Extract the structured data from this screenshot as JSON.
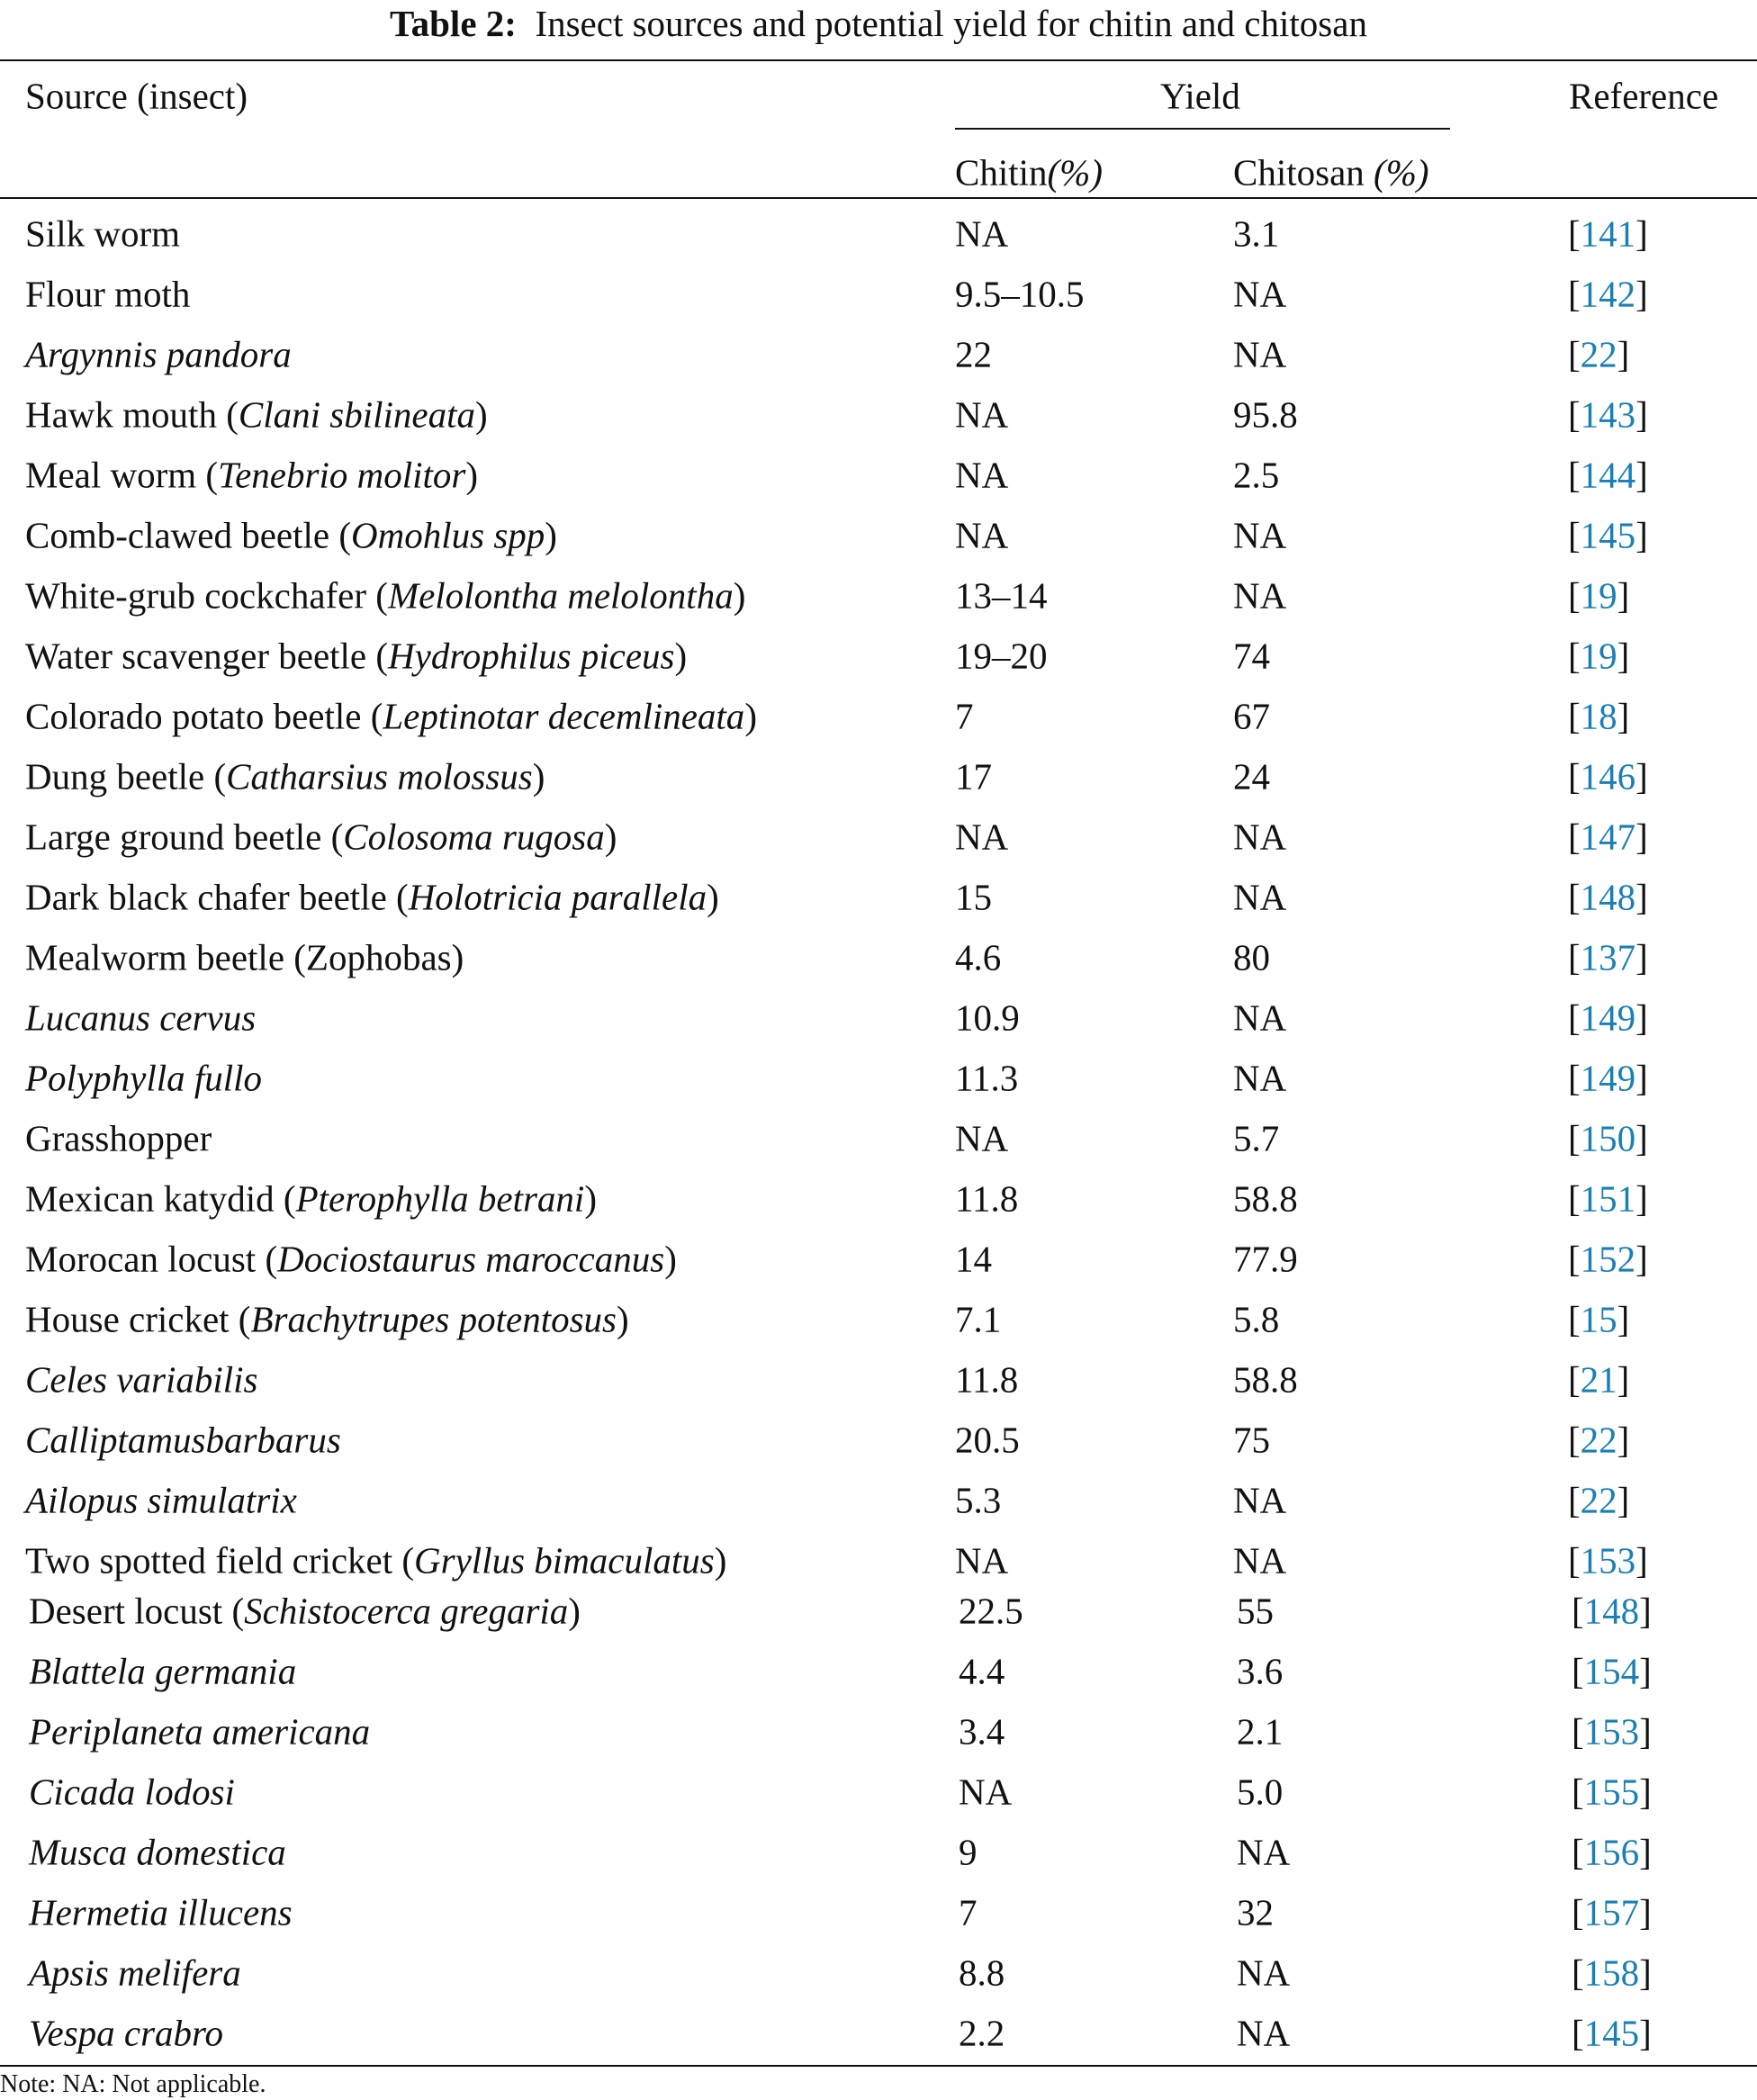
{
  "title": {
    "label": "Table 2:",
    "text": "Insect sources and potential yield for chitin and chitosan"
  },
  "table": {
    "header": {
      "source": "Source (insect)",
      "yield": "Yield",
      "reference": "Reference",
      "chitin": [
        {
          "text": "Chitin",
          "italic": false
        },
        {
          "text": "(%)",
          "italic": true
        }
      ],
      "chitosan": [
        {
          "text": "Chitosan ",
          "italic": false
        },
        {
          "text": "(%)",
          "italic": true
        }
      ]
    },
    "rows": [
      {
        "source": [
          {
            "text": "Silk worm",
            "italic": false
          }
        ],
        "chitin": "NA",
        "chitosan": "3.1",
        "reference": [
          "[",
          "141",
          "]"
        ]
      },
      {
        "source": [
          {
            "text": "Flour moth",
            "italic": false
          }
        ],
        "chitin": "9.5–10.5",
        "chitosan": "NA",
        "reference": [
          "[",
          "142",
          "]"
        ]
      },
      {
        "source": [
          {
            "text": "Argynnis pandora",
            "italic": true
          }
        ],
        "chitin": "22",
        "chitosan": "NA",
        "reference": [
          "[",
          "22",
          "]"
        ]
      },
      {
        "source": [
          {
            "text": "Hawk mouth (",
            "italic": false
          },
          {
            "text": "Clani sbilineata",
            "italic": true
          },
          {
            "text": ")",
            "italic": false
          }
        ],
        "chitin": "NA",
        "chitosan": "95.8",
        "reference": [
          "[",
          "143",
          "]"
        ]
      },
      {
        "source": [
          {
            "text": "Meal worm (",
            "italic": false
          },
          {
            "text": "Tenebrio molitor",
            "italic": true
          },
          {
            "text": ")",
            "italic": false
          }
        ],
        "chitin": "NA",
        "chitosan": "2.5",
        "reference": [
          "[",
          "144",
          "]"
        ]
      },
      {
        "source": [
          {
            "text": "Comb-clawed beetle (",
            "italic": false
          },
          {
            "text": "Omohlus spp",
            "italic": true
          },
          {
            "text": ")",
            "italic": false
          }
        ],
        "chitin": "NA",
        "chitosan": "NA",
        "reference": [
          "[",
          "145",
          "]"
        ]
      },
      {
        "source": [
          {
            "text": "White-grub cockchafer (",
            "italic": false
          },
          {
            "text": "Melolontha melolontha",
            "italic": true
          },
          {
            "text": ")",
            "italic": false
          }
        ],
        "chitin": "13–14",
        "chitosan": "NA",
        "reference": [
          "[",
          "19",
          "]"
        ]
      },
      {
        "source": [
          {
            "text": "Water scavenger beetle (",
            "italic": false
          },
          {
            "text": "Hydrophilus piceus",
            "italic": true
          },
          {
            "text": ")",
            "italic": false
          }
        ],
        "chitin": "19–20",
        "chitosan": "74",
        "reference": [
          "[",
          "19",
          "]"
        ]
      },
      {
        "source": [
          {
            "text": "Colorado potato beetle (",
            "italic": false
          },
          {
            "text": "Leptinotar decemlineata",
            "italic": true
          },
          {
            "text": ")",
            "italic": false
          }
        ],
        "chitin": "7",
        "chitosan": "67",
        "reference": [
          "[",
          "18",
          "]"
        ]
      },
      {
        "source": [
          {
            "text": "Dung beetle (",
            "italic": false
          },
          {
            "text": "Catharsius molossus",
            "italic": true
          },
          {
            "text": ")",
            "italic": false
          }
        ],
        "chitin": "17",
        "chitosan": "24",
        "reference": [
          "[",
          "146",
          "]"
        ]
      },
      {
        "source": [
          {
            "text": "Large ground beetle (",
            "italic": false
          },
          {
            "text": "Colosoma rugosa",
            "italic": true
          },
          {
            "text": ")",
            "italic": false
          }
        ],
        "chitin": "NA",
        "chitosan": "NA",
        "reference": [
          "[",
          "147",
          "]"
        ]
      },
      {
        "source": [
          {
            "text": "Dark black chafer beetle (",
            "italic": false
          },
          {
            "text": "Holotricia parallela",
            "italic": true
          },
          {
            "text": ")",
            "italic": false
          }
        ],
        "chitin": "15",
        "chitosan": "NA",
        "reference": [
          "[",
          "148",
          "]"
        ]
      },
      {
        "source": [
          {
            "text": "Mealworm beetle (Zophobas)",
            "italic": false
          }
        ],
        "chitin": "4.6",
        "chitosan": "80",
        "reference": [
          "[",
          "137",
          "]"
        ]
      },
      {
        "source": [
          {
            "text": "Lucanus cervus",
            "italic": true
          }
        ],
        "chitin": "10.9",
        "chitosan": "NA",
        "reference": [
          "[",
          "149",
          "]"
        ]
      },
      {
        "source": [
          {
            "text": "Polyphylla fullo",
            "italic": true
          }
        ],
        "chitin": "11.3",
        "chitosan": "NA",
        "reference": [
          "[",
          "149",
          "]"
        ]
      },
      {
        "source": [
          {
            "text": "Grasshopper",
            "italic": false
          }
        ],
        "chitin": "NA",
        "chitosan": "5.7",
        "reference": [
          "[",
          "150",
          "]"
        ]
      },
      {
        "source": [
          {
            "text": "Mexican katydid (",
            "italic": false
          },
          {
            "text": "Pterophylla betrani",
            "italic": true
          },
          {
            "text": ")",
            "italic": false
          }
        ],
        "chitin": "11.8",
        "chitosan": "58.8",
        "reference": [
          "[",
          "151",
          "]"
        ]
      },
      {
        "source": [
          {
            "text": "Morocan locust (",
            "italic": false
          },
          {
            "text": "Dociostaurus maroccanus",
            "italic": true
          },
          {
            "text": ")",
            "italic": false
          }
        ],
        "chitin": "14",
        "chitosan": "77.9",
        "reference": [
          "[",
          "152",
          "]"
        ]
      },
      {
        "source": [
          {
            "text": "House cricket (",
            "italic": false
          },
          {
            "text": "Brachytrupes potentosus",
            "italic": true
          },
          {
            "text": ")",
            "italic": false
          }
        ],
        "chitin": "7.1",
        "chitosan": "5.8",
        "reference": [
          "[",
          "15",
          "]"
        ]
      },
      {
        "source": [
          {
            "text": "Celes variabilis",
            "italic": true
          }
        ],
        "chitin": "11.8",
        "chitosan": "58.8",
        "reference": [
          "[",
          "21",
          "]"
        ]
      },
      {
        "source": [
          {
            "text": "Calliptamusbarbarus",
            "italic": true
          }
        ],
        "chitin": "20.5",
        "chitosan": "75",
        "reference": [
          "[",
          "22",
          "]"
        ]
      },
      {
        "source": [
          {
            "text": "Ailopus simulatrix",
            "italic": true
          }
        ],
        "chitin": "5.3",
        "chitosan": "NA",
        "reference": [
          "[",
          "22",
          "]"
        ]
      },
      {
        "source": [
          {
            "text": "Two spotted field cricket (",
            "italic": false
          },
          {
            "text": "Gryllus bimaculatus",
            "italic": true
          },
          {
            "text": ")",
            "italic": false
          }
        ],
        "chitin": "NA",
        "chitosan": "NA",
        "reference": [
          "[",
          "153",
          "]"
        ]
      },
      {
        "source": [
          {
            "text": "Desert locust (",
            "italic": false
          },
          {
            "text": "Schistocerca gregaria",
            "italic": true
          },
          {
            "text": ")",
            "italic": false
          }
        ],
        "chitin": "22.5",
        "chitosan": "55",
        "reference": [
          "[",
          "148",
          "]"
        ]
      },
      {
        "source": [
          {
            "text": "Blattela germania",
            "italic": true
          }
        ],
        "chitin": "4.4",
        "chitosan": "3.6",
        "reference": [
          "[",
          "154",
          "]"
        ]
      },
      {
        "source": [
          {
            "text": "Periplaneta americana",
            "italic": true
          }
        ],
        "chitin": "3.4",
        "chitosan": "2.1",
        "reference": [
          "[",
          "153",
          "]"
        ]
      },
      {
        "source": [
          {
            "text": "Cicada lodosi",
            "italic": true
          }
        ],
        "chitin": "NA",
        "chitosan": "5.0",
        "reference": [
          "[",
          "155",
          "]"
        ]
      },
      {
        "source": [
          {
            "text": "Musca domestica",
            "italic": true
          }
        ],
        "chitin": "9",
        "chitosan": "NA",
        "reference": [
          "[",
          "156",
          "]"
        ]
      },
      {
        "source": [
          {
            "text": "Hermetia illucens",
            "italic": true
          }
        ],
        "chitin": "7",
        "chitosan": "32",
        "reference": [
          "[",
          "157",
          "]"
        ]
      },
      {
        "source": [
          {
            "text": "Apsis melifera",
            "italic": true
          }
        ],
        "chitin": "8.8",
        "chitosan": "NA",
        "reference": [
          "[",
          "158",
          "]"
        ]
      },
      {
        "source": [
          {
            "text": "Vespa crabro",
            "italic": true
          }
        ],
        "chitin": "2.2",
        "chitosan": "NA",
        "reference": [
          "[",
          "145",
          "]"
        ]
      }
    ]
  },
  "note": "Note: NA: Not applicable."
}
